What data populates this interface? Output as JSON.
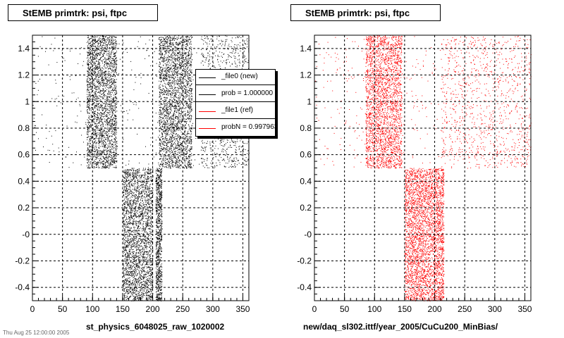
{
  "chart_data": [
    {
      "type": "scatter",
      "title": "StEMB primtrk: psi, ftpc",
      "xlabel": "st_physics_6048025_raw_1020002",
      "ylabel": "",
      "xlim": [
        0,
        360
      ],
      "ylim": [
        -0.5,
        1.5
      ],
      "x_ticks": [
        0,
        50,
        100,
        150,
        200,
        250,
        300,
        350
      ],
      "y_ticks": [
        -0.4,
        -0.2,
        0.0,
        0.2,
        0.4,
        0.6,
        0.8,
        1.0,
        1.2,
        1.4
      ],
      "y_tick_labels": [
        "-0.4",
        "-0.2",
        "-0",
        "0.2",
        "0.4",
        "0.6",
        "0.8",
        "1",
        "1.2",
        "1.4"
      ],
      "grid": true,
      "marker_color": "#000000",
      "series": [
        {
          "name": "_file0 (new)",
          "regions": [
            {
              "x": [
                0,
                360
              ],
              "y": [
                0.5,
                1.5
              ],
              "density": "low"
            },
            {
              "x": [
                90,
                140
              ],
              "y": [
                0.5,
                1.5
              ],
              "density": "high"
            },
            {
              "x": [
                210,
                265
              ],
              "y": [
                0.5,
                1.5
              ],
              "density": "high"
            },
            {
              "x": [
                280,
                360
              ],
              "y": [
                0.5,
                1.5
              ],
              "density": "medium"
            },
            {
              "x": [
                150,
                200
              ],
              "y": [
                -0.5,
                0.5
              ],
              "density": "high"
            },
            {
              "x": [
                205,
                215
              ],
              "y": [
                -0.5,
                0.5
              ],
              "density": "medium"
            }
          ]
        }
      ],
      "stats_box": [
        {
          "text": "_file0 (new)",
          "color": "#000000"
        },
        {
          "text": "prob = 1.000000",
          "color": "#000000"
        },
        {
          "text": "_file1 (ref)",
          "color": "#ff0000"
        },
        {
          "text": "probN = 0.997963",
          "color": "#ff0000"
        }
      ]
    },
    {
      "type": "scatter",
      "title": "StEMB primtrk: psi, ftpc",
      "xlabel": "new/daq_sl302.ittf/year_2005/CuCu200_MinBias/",
      "ylabel": "",
      "xlim": [
        0,
        360
      ],
      "ylim": [
        -0.5,
        1.5
      ],
      "x_ticks": [
        0,
        50,
        100,
        150,
        200,
        250,
        300,
        350
      ],
      "y_ticks": [
        -0.4,
        -0.2,
        0.0,
        0.2,
        0.4,
        0.6,
        0.8,
        1.0,
        1.2,
        1.4
      ],
      "y_tick_labels": [
        "-0.4",
        "-0.2",
        "-0",
        "0.2",
        "0.4",
        "0.6",
        "0.8",
        "1",
        "1.2",
        "1.4"
      ],
      "grid": true,
      "marker_color": "#ff0000",
      "series": [
        {
          "name": "_file1 (ref)",
          "regions": [
            {
              "x": [
                0,
                360
              ],
              "y": [
                0.5,
                1.5
              ],
              "density": "low"
            },
            {
              "x": [
                85,
                145
              ],
              "y": [
                0.5,
                1.5
              ],
              "density": "high"
            },
            {
              "x": [
                210,
                360
              ],
              "y": [
                0.5,
                1.5
              ],
              "density": "medium"
            },
            {
              "x": [
                150,
                200
              ],
              "y": [
                -0.5,
                0.5
              ],
              "density": "high"
            },
            {
              "x": [
                200,
                215
              ],
              "y": [
                -0.5,
                0.5
              ],
              "density": "medium"
            }
          ]
        }
      ]
    }
  ],
  "footer_text": "Thu Aug 25 12:00:00 2005"
}
